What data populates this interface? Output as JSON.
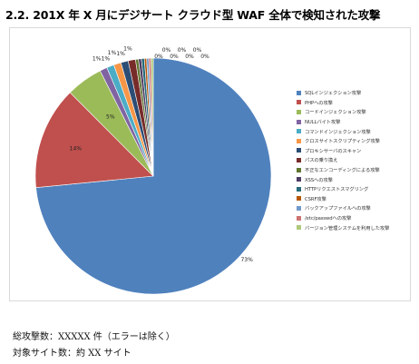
{
  "heading": "2.2. 201X 年 X 月にデジサート クラウド型 WAF 全体で検知された攻撃",
  "chart_data": {
    "type": "pie",
    "slices": [
      {
        "label": "SQLインジェクション攻撃",
        "value": 73,
        "display": "73%",
        "color": "#4f81bd"
      },
      {
        "label": "PHPへの攻撃",
        "value": 14,
        "display": "14%",
        "color": "#c0504d"
      },
      {
        "label": "コードインジェクション攻撃",
        "value": 5,
        "display": "5%",
        "color": "#9bbb59"
      },
      {
        "label": "NULLバイト攻撃",
        "value": 1,
        "display": "1%",
        "color": "#8064a2"
      },
      {
        "label": "コマンドインジェクション攻撃",
        "value": 1,
        "display": "1%",
        "color": "#4bacc6"
      },
      {
        "label": "クロスサイトスクリプティング攻撃",
        "value": 1,
        "display": "1%",
        "color": "#f79646"
      },
      {
        "label": "プロキシサーバのスキャン",
        "value": 1,
        "display": "1%",
        "color": "#2c4d75"
      },
      {
        "label": "パスの乗り換え",
        "value": 1,
        "display": "1%",
        "color": "#772c2a"
      },
      {
        "label": "不正なエンコーディングによる攻撃",
        "value": 0.4,
        "display": "0%",
        "color": "#5f7530"
      },
      {
        "label": "XSSへの攻撃",
        "value": 0.4,
        "display": "0%",
        "color": "#4d3b62"
      },
      {
        "label": "HTTPリクエストスマグリング",
        "value": 0.4,
        "display": "0%",
        "color": "#276a7c"
      },
      {
        "label": "CSRF攻撃",
        "value": 0.3,
        "display": "0%",
        "color": "#b65708"
      },
      {
        "label": "バックアップファイルへの攻撃",
        "value": 0.3,
        "display": "0%",
        "color": "#729aca"
      },
      {
        "label": "/etc/passwdへの攻撃",
        "value": 0.3,
        "display": "0%",
        "color": "#cd7371"
      },
      {
        "label": "バージョン管理システムを利用した攻撃",
        "value": 0.3,
        "display": "0%",
        "color": "#afc97a"
      }
    ]
  },
  "footer": {
    "total_attacks": "総攻撃数：XXXXX 件（エラーは除く）",
    "target_sites": "対象サイト数：約 XX サイト"
  }
}
